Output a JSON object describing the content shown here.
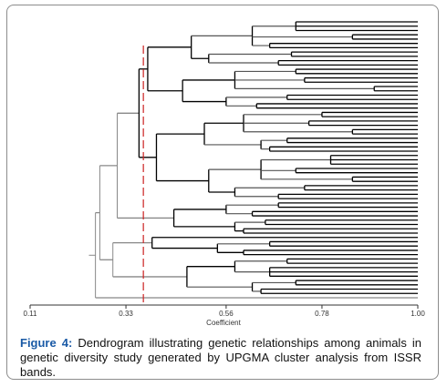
{
  "figure": {
    "caption_lead": "Figure 4:",
    "caption_text": " Dendrogram illustrating genetic relationships among animals in genetic diversity study generated by UPGMA cluster analysis from ISSR bands."
  },
  "axis": {
    "title": "Coefficient",
    "min": 0.11,
    "max": 1.0,
    "ticks": [
      "0.11",
      "0.33",
      "0.56",
      "0.78",
      "1.00"
    ]
  },
  "cutoff": {
    "value": 0.37,
    "color": "#cc2222"
  },
  "tree": {
    "leaf_count": 69,
    "color": "#000000",
    "secondary_color": "#888888"
  }
}
